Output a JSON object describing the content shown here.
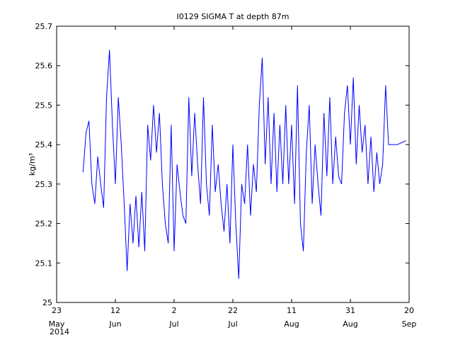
{
  "chart_data": {
    "type": "line",
    "title": "I0129 SIGMA T at depth 87m",
    "y_label": "kg/m³",
    "x_year_label": "2014",
    "xlim": [
      "2014-05-23",
      "2014-09-20"
    ],
    "xticks": [
      {
        "value": "2014-05-23",
        "label": "23"
      },
      {
        "value": "2014-06-12",
        "label": "12"
      },
      {
        "value": "2014-07-02",
        "label": "2"
      },
      {
        "value": "2014-07-22",
        "label": "22"
      },
      {
        "value": "2014-08-11",
        "label": "11"
      },
      {
        "value": "2014-08-31",
        "label": "31"
      },
      {
        "value": "2014-09-20",
        "label": "20"
      }
    ],
    "xtick_months": [
      "May",
      "Jun",
      "Jul",
      "Jul",
      "Aug",
      "Aug",
      "Sep"
    ],
    "ylim": [
      25,
      25.7
    ],
    "yticks": [
      25,
      25.1,
      25.2,
      25.3,
      25.4,
      25.5,
      25.6,
      25.7
    ],
    "series": [
      {
        "color": "#0000ff",
        "x": [
          "2014-06-01",
          "2014-06-02",
          "2014-06-03",
          "2014-06-04",
          "2014-06-05",
          "2014-06-06",
          "2014-06-07",
          "2014-06-08",
          "2014-06-09",
          "2014-06-10",
          "2014-06-11",
          "2014-06-12",
          "2014-06-13",
          "2014-06-14",
          "2014-06-15",
          "2014-06-16",
          "2014-06-17",
          "2014-06-18",
          "2014-06-19",
          "2014-06-20",
          "2014-06-21",
          "2014-06-22",
          "2014-06-23",
          "2014-06-24",
          "2014-06-25",
          "2014-06-26",
          "2014-06-27",
          "2014-06-28",
          "2014-06-29",
          "2014-06-30",
          "2014-07-01",
          "2014-07-02",
          "2014-07-03",
          "2014-07-04",
          "2014-07-05",
          "2014-07-06",
          "2014-07-07",
          "2014-07-08",
          "2014-07-09",
          "2014-07-10",
          "2014-07-11",
          "2014-07-12",
          "2014-07-13",
          "2014-07-14",
          "2014-07-15",
          "2014-07-16",
          "2014-07-17",
          "2014-07-18",
          "2014-07-19",
          "2014-07-20",
          "2014-07-21",
          "2014-07-22",
          "2014-07-23",
          "2014-07-24",
          "2014-07-25",
          "2014-07-26",
          "2014-07-27",
          "2014-07-28",
          "2014-07-29",
          "2014-07-30",
          "2014-07-31",
          "2014-08-01",
          "2014-08-02",
          "2014-08-03",
          "2014-08-04",
          "2014-08-05",
          "2014-08-06",
          "2014-08-07",
          "2014-08-08",
          "2014-08-09",
          "2014-08-10",
          "2014-08-11",
          "2014-08-12",
          "2014-08-13",
          "2014-08-14",
          "2014-08-15",
          "2014-08-16",
          "2014-08-17",
          "2014-08-18",
          "2014-08-19",
          "2014-08-20",
          "2014-08-21",
          "2014-08-22",
          "2014-08-23",
          "2014-08-24",
          "2014-08-25",
          "2014-08-26",
          "2014-08-27",
          "2014-08-28",
          "2014-08-29",
          "2014-08-30",
          "2014-08-31",
          "2014-09-01",
          "2014-09-02",
          "2014-09-03",
          "2014-09-04",
          "2014-09-05",
          "2014-09-06",
          "2014-09-07",
          "2014-09-08",
          "2014-09-09",
          "2014-09-10",
          "2014-09-11",
          "2014-09-12",
          "2014-09-13",
          "2014-09-16",
          "2014-09-19"
        ],
        "values": [
          25.33,
          25.43,
          25.46,
          25.3,
          25.25,
          25.37,
          25.3,
          25.24,
          25.52,
          25.64,
          25.45,
          25.3,
          25.52,
          25.4,
          25.25,
          25.08,
          25.25,
          25.15,
          25.27,
          25.14,
          25.28,
          25.13,
          25.45,
          25.36,
          25.5,
          25.38,
          25.48,
          25.3,
          25.2,
          25.15,
          25.45,
          25.13,
          25.35,
          25.28,
          25.22,
          25.2,
          25.52,
          25.32,
          25.48,
          25.35,
          25.25,
          25.52,
          25.3,
          25.22,
          25.45,
          25.28,
          25.35,
          25.25,
          25.18,
          25.3,
          25.15,
          25.4,
          25.2,
          25.06,
          25.3,
          25.25,
          25.4,
          25.22,
          25.35,
          25.28,
          25.5,
          25.62,
          25.35,
          25.52,
          25.3,
          25.48,
          25.28,
          25.45,
          25.3,
          25.5,
          25.3,
          25.45,
          25.25,
          25.55,
          25.2,
          25.13,
          25.38,
          25.5,
          25.25,
          25.4,
          25.3,
          25.22,
          25.48,
          25.32,
          25.52,
          25.3,
          25.42,
          25.32,
          25.3,
          25.48,
          25.55,
          25.4,
          25.57,
          25.35,
          25.5,
          25.38,
          25.45,
          25.3,
          25.42,
          25.28,
          25.38,
          25.3,
          25.35,
          25.55,
          25.4,
          25.4,
          25.41
        ]
      }
    ]
  }
}
